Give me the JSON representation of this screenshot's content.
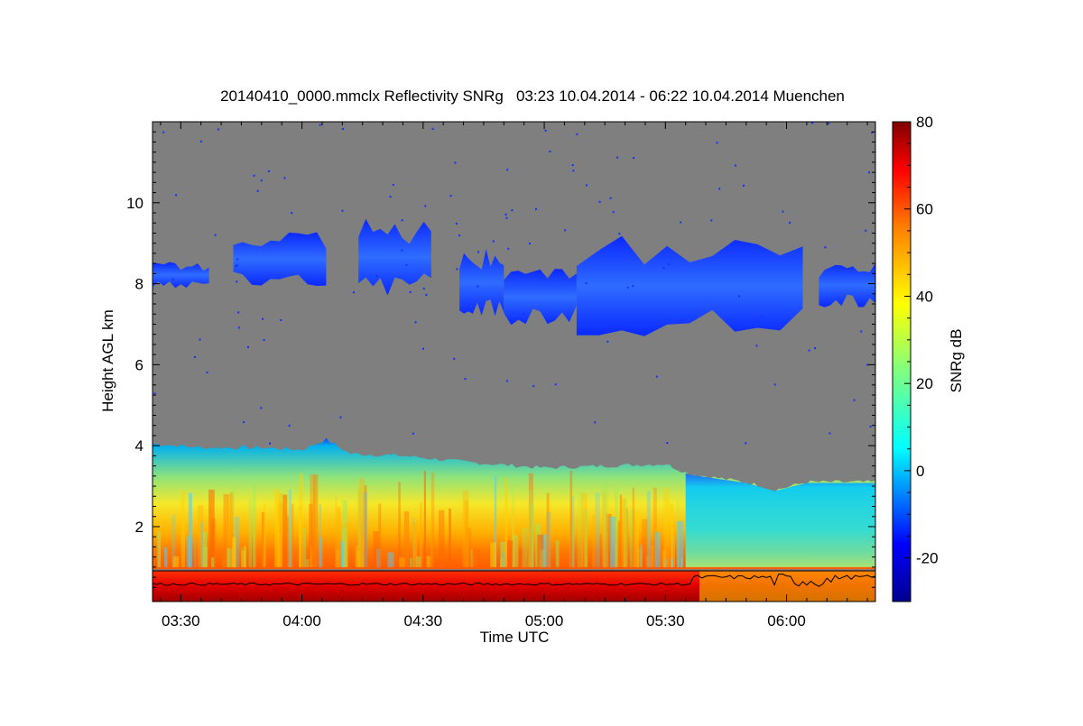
{
  "chart_data": {
    "type": "heatmap",
    "title": "20140410_0000.mmclx Reflectivity SNRg   03:23 10.04.2014 - 06:22 10.04.2014 Muenchen",
    "xlabel": "Time UTC",
    "ylabel": "Height AGL km",
    "x_ticks": [
      "03:30",
      "04:00",
      "04:30",
      "05:00",
      "05:30",
      "06:00"
    ],
    "x_tick_minutes": [
      210,
      240,
      270,
      300,
      330,
      360
    ],
    "xlim_minutes": [
      203,
      382
    ],
    "y_ticks": [
      "2",
      "4",
      "6",
      "8",
      "10"
    ],
    "y_tick_values": [
      2,
      4,
      6,
      8,
      10
    ],
    "ylim": [
      0.15,
      12
    ],
    "colorbar": {
      "label": "SNRg dB",
      "ticks": [
        "80",
        "60",
        "40",
        "20",
        "0",
        "-20"
      ],
      "tick_values": [
        80,
        60,
        40,
        20,
        0,
        -20
      ],
      "range": [
        -30,
        80
      ]
    },
    "background_color": "#7f7f7f",
    "boundary_layer_top_km": [
      [
        203,
        4.05
      ],
      [
        215,
        3.95
      ],
      [
        230,
        3.95
      ],
      [
        240,
        3.9
      ],
      [
        246,
        4.15
      ],
      [
        252,
        3.8
      ],
      [
        265,
        3.75
      ],
      [
        280,
        3.6
      ],
      [
        300,
        3.45
      ],
      [
        315,
        3.5
      ],
      [
        330,
        3.55
      ],
      [
        336,
        3.3
      ],
      [
        350,
        3.1
      ],
      [
        357,
        2.9
      ],
      [
        365,
        3.1
      ],
      [
        382,
        3.1
      ]
    ],
    "cirrus_layers": [
      {
        "t_start": 203,
        "t_end": 217,
        "base_km": 7.85,
        "top_km": 8.55
      },
      {
        "t_start": 223,
        "t_end": 246,
        "base_km": 7.9,
        "top_km": 9.3
      },
      {
        "t_start": 254,
        "t_end": 272,
        "base_km": 7.7,
        "top_km": 9.6
      },
      {
        "t_start": 279,
        "t_end": 290,
        "base_km": 7.2,
        "top_km": 8.9
      },
      {
        "t_start": 290,
        "t_end": 308,
        "base_km": 6.95,
        "top_km": 8.7
      },
      {
        "t_start": 308,
        "t_end": 364,
        "base_km": 6.7,
        "top_km": 9.2
      },
      {
        "t_start": 368,
        "t_end": 382,
        "base_km": 7.4,
        "top_km": 8.55
      }
    ]
  }
}
